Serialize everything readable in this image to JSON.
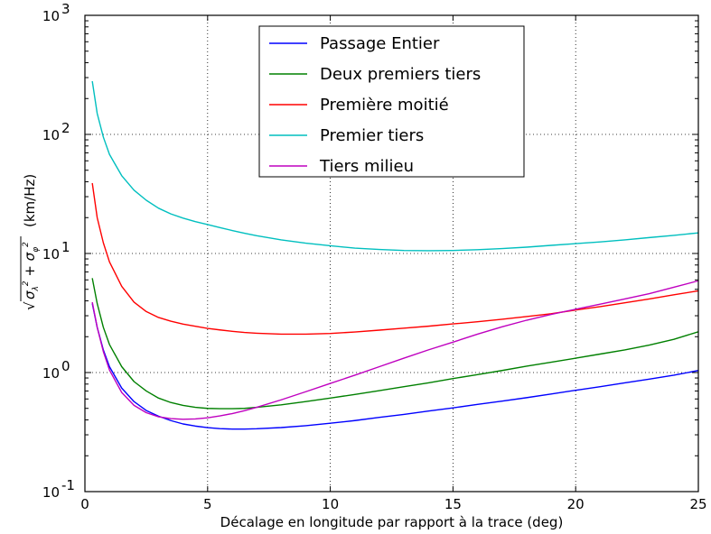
{
  "chart_data": {
    "type": "line",
    "xlabel": "Décalage en longitude par rapport à la trace (deg)",
    "ylabel": "√(σλ² + σφ²)  (km/Hz)",
    "ylabel_prefix": "√",
    "ylabel_unit": "(km/Hz)",
    "xlim": [
      0,
      25
    ],
    "ylim": [
      0.1,
      1000
    ],
    "yscale": "log",
    "grid": true,
    "legend_position": "upper-center",
    "x_ticks": [
      "0",
      "5",
      "10",
      "15",
      "20",
      "25"
    ],
    "y_ticks": [
      {
        "base": "10",
        "exp": "-1"
      },
      {
        "base": "10",
        "exp": "0"
      },
      {
        "base": "10",
        "exp": "1"
      },
      {
        "base": "10",
        "exp": "2"
      },
      {
        "base": "10",
        "exp": "3"
      }
    ],
    "series": [
      {
        "name": "Passage Entier",
        "color": "#0000ff",
        "x": [
          0.3,
          0.5,
          0.75,
          1,
          1.5,
          2,
          2.5,
          3,
          3.5,
          4,
          4.5,
          5,
          5.5,
          6,
          6.5,
          7,
          8,
          9,
          10,
          11,
          12,
          13,
          14,
          15,
          16,
          17,
          18,
          19,
          20,
          21,
          22,
          23,
          24,
          25
        ],
        "y": [
          3.8,
          2.4,
          1.55,
          1.12,
          0.74,
          0.57,
          0.48,
          0.43,
          0.395,
          0.37,
          0.355,
          0.345,
          0.338,
          0.335,
          0.335,
          0.337,
          0.345,
          0.358,
          0.375,
          0.395,
          0.42,
          0.445,
          0.475,
          0.505,
          0.54,
          0.575,
          0.615,
          0.66,
          0.71,
          0.76,
          0.82,
          0.88,
          0.95,
          1.04
        ]
      },
      {
        "name": "Deux premiers tiers",
        "color": "#008000",
        "x": [
          0.3,
          0.5,
          0.75,
          1,
          1.5,
          2,
          2.5,
          3,
          3.5,
          4,
          4.5,
          5,
          5.5,
          6,
          6.5,
          7,
          8,
          9,
          10,
          11,
          12,
          13,
          14,
          15,
          16,
          17,
          18,
          19,
          20,
          21,
          22,
          23,
          24,
          25
        ],
        "y": [
          6.2,
          3.8,
          2.4,
          1.72,
          1.12,
          0.84,
          0.7,
          0.61,
          0.56,
          0.53,
          0.51,
          0.5,
          0.497,
          0.497,
          0.5,
          0.51,
          0.535,
          0.57,
          0.61,
          0.655,
          0.705,
          0.76,
          0.82,
          0.89,
          0.96,
          1.04,
          1.13,
          1.22,
          1.32,
          1.43,
          1.55,
          1.7,
          1.9,
          2.2
        ]
      },
      {
        "name": "Première moitié",
        "color": "#ff0000",
        "x": [
          0.3,
          0.5,
          0.75,
          1,
          1.5,
          2,
          2.5,
          3,
          3.5,
          4,
          4.5,
          5,
          5.5,
          6,
          6.5,
          7,
          8,
          9,
          10,
          11,
          12,
          13,
          14,
          15,
          16,
          17,
          18,
          19,
          20,
          21,
          22,
          23,
          24,
          25
        ],
        "y": [
          39,
          20,
          12.3,
          8.5,
          5.3,
          3.9,
          3.25,
          2.9,
          2.7,
          2.55,
          2.45,
          2.35,
          2.28,
          2.22,
          2.17,
          2.14,
          2.1,
          2.1,
          2.13,
          2.19,
          2.27,
          2.36,
          2.45,
          2.56,
          2.67,
          2.8,
          2.95,
          3.12,
          3.35,
          3.58,
          3.85,
          4.15,
          4.5,
          4.85
        ]
      },
      {
        "name": "Premier tiers",
        "color": "#00bfbf",
        "x": [
          0.3,
          0.5,
          0.75,
          1,
          1.5,
          2,
          2.5,
          3,
          3.5,
          4,
          4.5,
          5,
          5.5,
          6,
          6.5,
          7,
          8,
          9,
          10,
          11,
          12,
          13,
          14,
          15,
          16,
          17,
          18,
          19,
          20,
          21,
          22,
          23,
          24,
          25
        ],
        "y": [
          280,
          150,
          95,
          68,
          45,
          34,
          28,
          24,
          21.5,
          19.8,
          18.5,
          17.5,
          16.5,
          15.6,
          14.8,
          14.1,
          13,
          12.2,
          11.6,
          11.1,
          10.8,
          10.6,
          10.55,
          10.6,
          10.75,
          11,
          11.3,
          11.7,
          12.1,
          12.5,
          13,
          13.6,
          14.2,
          14.9
        ]
      },
      {
        "name": "Tiers milieu",
        "color": "#bf00bf",
        "x": [
          0.3,
          0.5,
          0.75,
          1,
          1.5,
          2,
          2.5,
          3,
          3.5,
          4,
          4.5,
          5,
          5.5,
          6,
          6.5,
          7,
          8,
          9,
          10,
          11,
          12,
          13,
          14,
          15,
          16,
          17,
          18,
          19,
          20,
          21,
          22,
          23,
          24,
          25
        ],
        "y": [
          3.9,
          2.4,
          1.5,
          1.05,
          0.68,
          0.53,
          0.46,
          0.425,
          0.41,
          0.405,
          0.408,
          0.417,
          0.432,
          0.452,
          0.478,
          0.51,
          0.59,
          0.69,
          0.81,
          0.95,
          1.12,
          1.32,
          1.55,
          1.8,
          2.1,
          2.42,
          2.75,
          3.08,
          3.4,
          3.75,
          4.15,
          4.6,
          5.2,
          5.9
        ]
      }
    ]
  }
}
